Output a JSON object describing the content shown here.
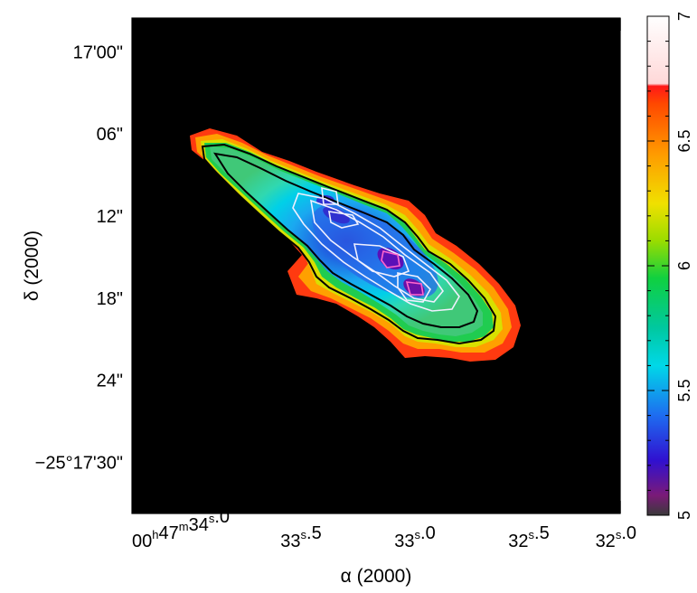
{
  "chart_data": {
    "type": "heatmap",
    "xlabel": "α (2000)",
    "ylabel": "δ (2000)",
    "x_ticks": [
      {
        "value": 0,
        "label": "00h47m34s.0",
        "parts": [
          "00",
          "h",
          "47",
          "m",
          "34",
          "s",
          ".0"
        ]
      },
      {
        "value": 1,
        "label": "33s.5",
        "parts": [
          "33",
          "s",
          ".5"
        ]
      },
      {
        "value": 2,
        "label": "33s.0",
        "parts": [
          "33",
          "s",
          ".0"
        ]
      },
      {
        "value": 3,
        "label": "32s.5",
        "parts": [
          "32",
          "s",
          ".5"
        ]
      },
      {
        "value": 4,
        "label": "32s.0",
        "parts": [
          "32",
          "s",
          ".0"
        ]
      }
    ],
    "y_ticks": [
      {
        "value": 0,
        "label": "17'00\""
      },
      {
        "value": 6,
        "label": "06\""
      },
      {
        "value": 12,
        "label": "12\""
      },
      {
        "value": 18,
        "label": "18\""
      },
      {
        "value": 24,
        "label": "24\""
      },
      {
        "value": 30,
        "label": "−25°17'30\""
      }
    ],
    "colorbar": {
      "range": [
        5,
        7
      ],
      "ticks": [
        {
          "value": 5,
          "label": "5"
        },
        {
          "value": 5.5,
          "label": "5.5"
        },
        {
          "value": 6,
          "label": "6"
        },
        {
          "value": 6.5,
          "label": "6.5"
        },
        {
          "value": 7,
          "label": "7"
        }
      ],
      "stops": [
        {
          "value": 5.0,
          "color": "#3a3a3a"
        },
        {
          "value": 5.08,
          "color": "#7a1a78"
        },
        {
          "value": 5.22,
          "color": "#3010d0"
        },
        {
          "value": 5.4,
          "color": "#1e6cf0"
        },
        {
          "value": 5.6,
          "color": "#00d8e8"
        },
        {
          "value": 5.75,
          "color": "#00c8a0"
        },
        {
          "value": 5.95,
          "color": "#10d040"
        },
        {
          "value": 6.1,
          "color": "#9adc00"
        },
        {
          "value": 6.25,
          "color": "#f0e000"
        },
        {
          "value": 6.45,
          "color": "#ff9a00"
        },
        {
          "value": 6.65,
          "color": "#ff4800"
        },
        {
          "value": 6.72,
          "color": "#ff1818"
        },
        {
          "value": 6.73,
          "color": "#ffd8d8"
        },
        {
          "value": 7.0,
          "color": "#ffffff"
        }
      ]
    },
    "background_color": "#000000",
    "contour_colors": {
      "outer": "#000000",
      "inner": "#f0f0ff",
      "peak": "#ff66cc"
    }
  }
}
